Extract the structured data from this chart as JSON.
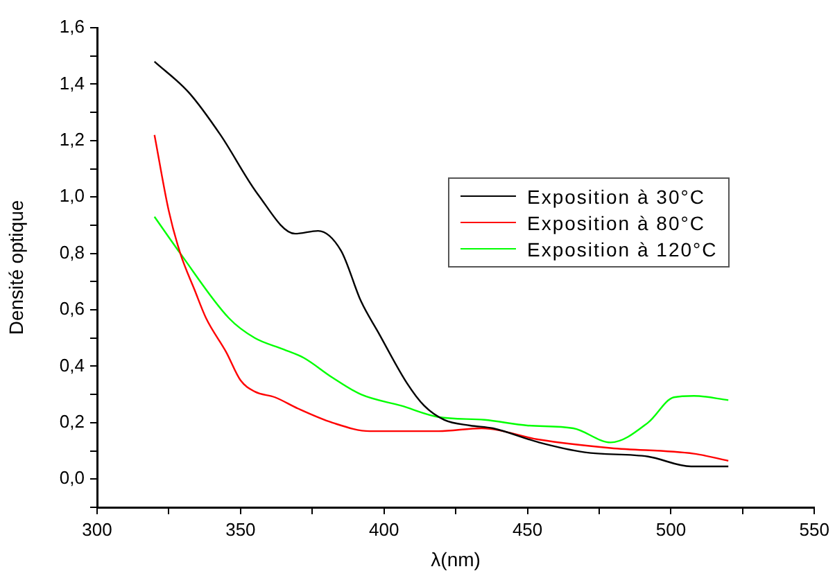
{
  "chart_data": {
    "type": "line",
    "xlabel": "λ(nm)",
    "ylabel": "Densité optique",
    "xlim": [
      300,
      550
    ],
    "xticks": [
      300,
      {
        "value": 325,
        "label": null
      },
      350,
      {
        "value": 375,
        "label": null
      },
      400,
      {
        "value": 425,
        "label": null
      },
      450,
      {
        "value": 475,
        "label": null
      },
      500,
      {
        "value": 525,
        "label": null
      },
      550
    ],
    "ylim": [
      -0.1,
      1.6
    ],
    "yticks": [
      {
        "value": -0.1,
        "label": null
      },
      {
        "value": 0,
        "label": "0,0"
      },
      {
        "value": 0.1,
        "label": null
      },
      {
        "value": 0.2,
        "label": "0,2"
      },
      {
        "value": 0.3,
        "label": null
      },
      {
        "value": 0.4,
        "label": "0,4"
      },
      {
        "value": 0.5,
        "label": null
      },
      {
        "value": 0.6,
        "label": "0,6"
      },
      {
        "value": 0.7,
        "label": null
      },
      {
        "value": 0.8,
        "label": "0,8"
      },
      {
        "value": 0.9,
        "label": null
      },
      {
        "value": 1.0,
        "label": "1,0"
      },
      {
        "value": 1.1,
        "label": null
      },
      {
        "value": 1.2,
        "label": "1,2"
      },
      {
        "value": 1.3,
        "label": null
      },
      {
        "value": 1.4,
        "label": "1,4"
      },
      {
        "value": 1.5,
        "label": null
      },
      {
        "value": 1.6,
        "label": "1,6"
      }
    ],
    "grid": false,
    "legend": "right",
    "marker": "none",
    "line_style": "solid",
    "series": [
      {
        "name": "Exposition à 30°C",
        "color": "#000000",
        "x": [
          320,
          332,
          343,
          356,
          369,
          377,
          385,
          392,
          398,
          408,
          414,
          421,
          430,
          438,
          454,
          470,
          492,
          507,
          520
        ],
        "values": [
          1.48,
          1.37,
          1.22,
          1.01,
          0.87,
          0.88,
          0.81,
          0.63,
          0.52,
          0.34,
          0.26,
          0.21,
          0.19,
          0.18,
          0.13,
          0.095,
          0.08,
          0.045,
          0.045
        ]
      },
      {
        "name": "Exposition à 80°C",
        "color": "#ff0000",
        "x": [
          320,
          325,
          329,
          334,
          338,
          345,
          350,
          355,
          362,
          370,
          382,
          395,
          419,
          434,
          454,
          479,
          508,
          520
        ],
        "values": [
          1.22,
          0.95,
          0.8,
          0.67,
          0.57,
          0.45,
          0.35,
          0.31,
          0.29,
          0.25,
          0.2,
          0.17,
          0.17,
          0.18,
          0.14,
          0.11,
          0.09,
          0.065
        ]
      },
      {
        "name": "Exposition à 120°C",
        "color": "#00ff00",
        "x": [
          320,
          329,
          346,
          355,
          365,
          372,
          382,
          392,
          406,
          419,
          435,
          450,
          466,
          479,
          492,
          501,
          508,
          520
        ],
        "values": [
          0.93,
          0.8,
          0.57,
          0.5,
          0.46,
          0.43,
          0.36,
          0.3,
          0.26,
          0.22,
          0.21,
          0.19,
          0.18,
          0.13,
          0.2,
          0.29,
          0.295,
          0.28
        ]
      }
    ]
  }
}
